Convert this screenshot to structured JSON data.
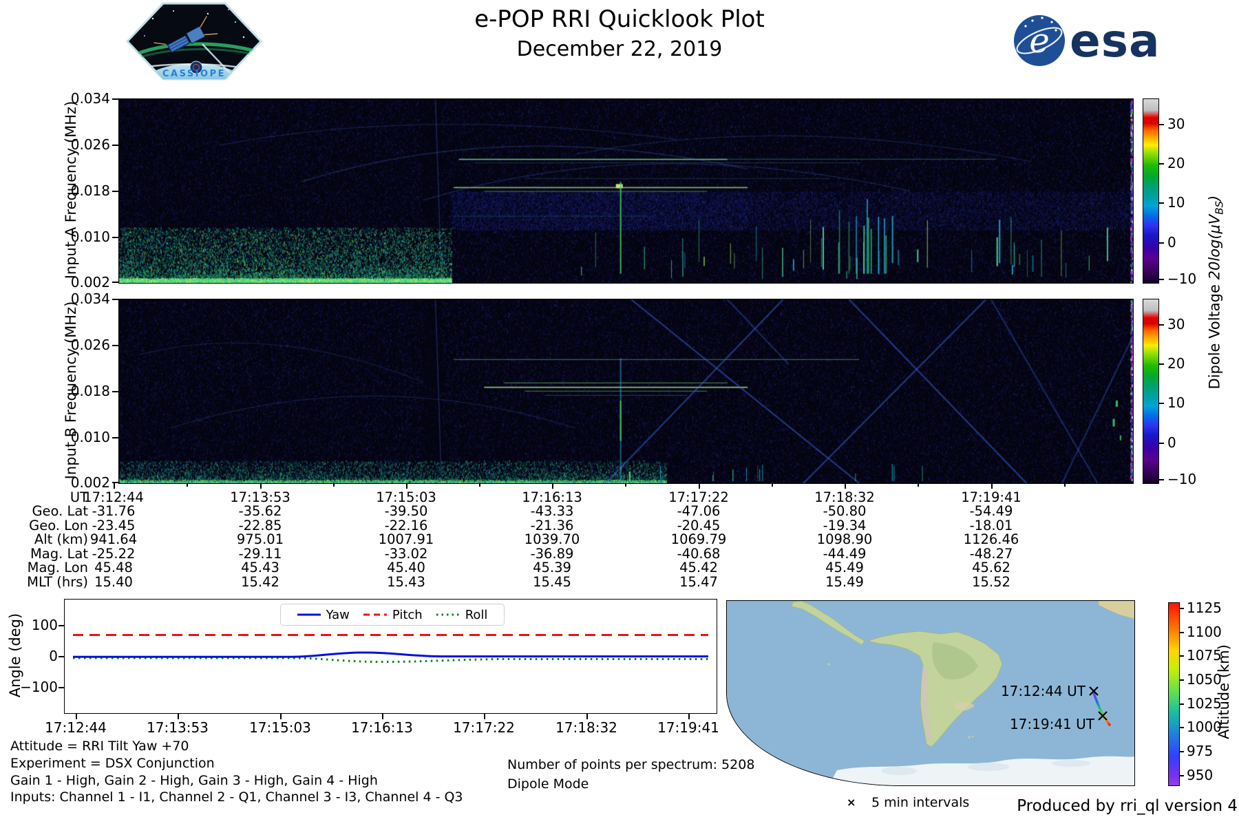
{
  "header": {
    "title": "e-POP RRI Quicklook Plot",
    "date": "December 22, 2019",
    "cassiope_logo_text": "CASSIOPE",
    "esa_logo_text": "esa"
  },
  "colors": {
    "esa_navy": "#16335f",
    "yaw_blue": "#0011dd",
    "pitch_red": "#ee1111",
    "roll_green": "#0a7f0a",
    "ocean": "#8db6d6",
    "land": "#c2d39b"
  },
  "spectrograms": {
    "colorbar_label_text": "Dipole Voltage ",
    "colorbar_label_math": "20log(μV",
    "colorbar_label_sub": "BS",
    "colorbar_label_close": ")",
    "colorbar_ticks": [
      "30",
      "20",
      "10",
      "0",
      "−10"
    ],
    "panel_a": {
      "ylabel": "Input A Frequency (MHz)",
      "yticks": [
        "0.034",
        "0.026",
        "0.018",
        "0.010",
        "0.002"
      ]
    },
    "panel_b": {
      "ylabel": "Input B Frequency (MHz)",
      "yticks": [
        "0.034",
        "0.026",
        "0.018",
        "0.010",
        "0.002"
      ]
    }
  },
  "ephemeris": {
    "rows": [
      {
        "label": "UT",
        "values": [
          "17:12:44",
          "17:13:53",
          "17:15:03",
          "17:16:13",
          "17:17:22",
          "17:18:32",
          "17:19:41"
        ]
      },
      {
        "label": "Geo. Lat",
        "values": [
          "-31.76",
          "-35.62",
          "-39.50",
          "-43.33",
          "-47.06",
          "-50.80",
          "-54.49"
        ]
      },
      {
        "label": "Geo. Lon",
        "values": [
          "-23.45",
          "-22.85",
          "-22.16",
          "-21.36",
          "-20.45",
          "-19.34",
          "-18.01"
        ]
      },
      {
        "label": "Alt (km)",
        "values": [
          "941.64",
          "975.01",
          "1007.91",
          "1039.70",
          "1069.79",
          "1098.90",
          "1126.46"
        ]
      },
      {
        "label": "Mag. Lat",
        "values": [
          "-25.22",
          "-29.11",
          "-33.02",
          "-36.89",
          "-40.68",
          "-44.49",
          "-48.27"
        ]
      },
      {
        "label": "Mag. Lon",
        "values": [
          "45.48",
          "45.43",
          "45.40",
          "45.39",
          "45.42",
          "45.49",
          "45.62"
        ]
      },
      {
        "label": "MLT (hrs)",
        "values": [
          "15.40",
          "15.42",
          "15.43",
          "15.45",
          "15.47",
          "15.49",
          "15.52"
        ]
      }
    ]
  },
  "attitude_plot": {
    "ylabel": "Angle (deg)",
    "yticks": [
      "100",
      "0",
      "−100"
    ],
    "xticks": [
      "17:12:44",
      "17:13:53",
      "17:15:03",
      "17:16:13",
      "17:17:22",
      "17:18:32",
      "17:19:41"
    ],
    "legend": {
      "yaw": "Yaw",
      "pitch": "Pitch",
      "roll": "Roll"
    }
  },
  "info": {
    "attitude": "Attitude = RRI Tilt Yaw +70",
    "experiment": "Experiment = DSX Conjunction",
    "gains": "Gain 1 - High, Gain 2 - High, Gain 3 - High, Gain 4 - High",
    "inputs": "Inputs: Channel 1 - I1, Channel 2 - Q1, Channel 3 - I3, Channel 4 - Q3",
    "points_per_spectrum": "Number of points per spectrum: 5208",
    "mode": "Dipole Mode",
    "produced_by": "Produced by rri_ql version 4"
  },
  "map": {
    "start_label": "17:12:44 UT",
    "end_label": "17:19:41 UT",
    "marker_symbol": "×",
    "marker_legend": "5 min intervals",
    "colorbar_label": "Altitude (km)",
    "colorbar_ticks": [
      "1125",
      "1100",
      "1075",
      "1050",
      "1025",
      "1000",
      "975",
      "950"
    ]
  },
  "chart_data": [
    {
      "type": "heatmap",
      "title": "Input A spectrogram",
      "ylabel": "Input A Frequency (MHz)",
      "ylim": [
        0.002,
        0.034
      ],
      "yticks": [
        0.034,
        0.026,
        0.018,
        0.01,
        0.002
      ],
      "x_ticklabels": [
        "17:12:44",
        "17:13:53",
        "17:15:03",
        "17:16:13",
        "17:17:22",
        "17:18:32",
        "17:19:41"
      ],
      "colormap": "nipy_spectral",
      "colorbar": {
        "label": "Dipole Voltage 20log(μV_BS)",
        "ticks": [
          30,
          20,
          10,
          0,
          -10
        ],
        "range": [
          -10,
          36
        ]
      },
      "features": [
        "bright broadband noise floor at 0.002-0.004 MHz before ~17:14:30",
        "enhanced blue band 0.012-0.017 MHz after ~17:14:30",
        "narrowband green lines near 0.0235 MHz and 0.018-0.019 MHz between ~17:14:30 and ~17:17:30",
        "bright burst near 0.018 MHz around 17:16:10",
        "sporadic vertical green bursts in right half near low frequencies",
        "faint diagonal arc traces across upper frequencies"
      ]
    },
    {
      "type": "heatmap",
      "title": "Input B spectrogram",
      "ylabel": "Input B Frequency (MHz)",
      "ylim": [
        0.002,
        0.034
      ],
      "yticks": [
        0.034,
        0.026,
        0.018,
        0.01,
        0.002
      ],
      "x_ticklabels": [
        "17:12:44",
        "17:13:53",
        "17:15:03",
        "17:16:13",
        "17:17:22",
        "17:18:32",
        "17:19:41"
      ],
      "colormap": "nipy_spectral",
      "colorbar": {
        "label": "Dipole Voltage 20log(μV_BS)",
        "ticks": [
          30,
          20,
          10,
          0,
          -10
        ],
        "range": [
          -10,
          36
        ]
      },
      "features": [
        "weaker teal noise floor at 0.002-0.003 MHz before ~17:15",
        "narrowband lines near 0.0235 MHz and cluster 0.018-0.020 MHz mid-pass",
        "bright crossing blue diagonal streaks after ~17:16",
        "tall burst near 17:16:10",
        "isolated green bursts near right edge"
      ]
    },
    {
      "type": "line",
      "title": "Attitude angles",
      "ylabel": "Angle (deg)",
      "ylim": [
        -180,
        180
      ],
      "yticks": [
        100,
        0,
        -100
      ],
      "x_ticklabels": [
        "17:12:44",
        "17:13:53",
        "17:15:03",
        "17:16:13",
        "17:17:22",
        "17:18:32",
        "17:19:41"
      ],
      "legend_position": "upper center",
      "series": [
        {
          "name": "Yaw",
          "color": "#0000ff",
          "style": "solid",
          "values_deg": [
            0,
            0,
            0,
            8,
            2,
            0,
            0
          ]
        },
        {
          "name": "Pitch",
          "color": "#ff0000",
          "style": "dashed",
          "values_deg": [
            70,
            70,
            70,
            70,
            70,
            70,
            70
          ]
        },
        {
          "name": "Roll",
          "color": "#008000",
          "style": "dotted",
          "values_deg": [
            0,
            0,
            -4,
            -14,
            -8,
            -6,
            -5
          ]
        }
      ]
    },
    {
      "type": "table",
      "title": "Ephemeris",
      "row_labels": [
        "UT",
        "Geo. Lat",
        "Geo. Lon",
        "Alt (km)",
        "Mag. Lat",
        "Mag. Lon",
        "MLT (hrs)"
      ],
      "columns": [
        "17:12:44",
        "17:13:53",
        "17:15:03",
        "17:16:13",
        "17:17:22",
        "17:18:32",
        "17:19:41"
      ],
      "geo_lat": [
        -31.76,
        -35.62,
        -39.5,
        -43.33,
        -47.06,
        -50.8,
        -54.49
      ],
      "geo_lon": [
        -23.45,
        -22.85,
        -22.16,
        -21.36,
        -20.45,
        -19.34,
        -18.01
      ],
      "alt_km": [
        941.64,
        975.01,
        1007.91,
        1039.7,
        1069.79,
        1098.9,
        1126.46
      ],
      "mag_lat": [
        -25.22,
        -29.11,
        -33.02,
        -36.89,
        -40.68,
        -44.49,
        -48.27
      ],
      "mag_lon": [
        45.48,
        45.43,
        45.4,
        45.39,
        45.42,
        45.49,
        45.62
      ],
      "mlt_hrs": [
        15.4,
        15.42,
        15.43,
        15.45,
        15.47,
        15.49,
        15.52
      ]
    },
    {
      "type": "map",
      "title": "Ground track over South Atlantic / South America region",
      "track": {
        "start": {
          "label": "17:12:44 UT",
          "alt_km": 941.64
        },
        "end": {
          "label": "17:19:41 UT",
          "alt_km": 1126.46
        }
      },
      "colorbar": {
        "label": "Altitude (km)",
        "ticks": [
          1125,
          1100,
          1075,
          1050,
          1025,
          1000,
          975,
          950
        ]
      },
      "marker_note": "x markers every 5 min intervals"
    }
  ]
}
